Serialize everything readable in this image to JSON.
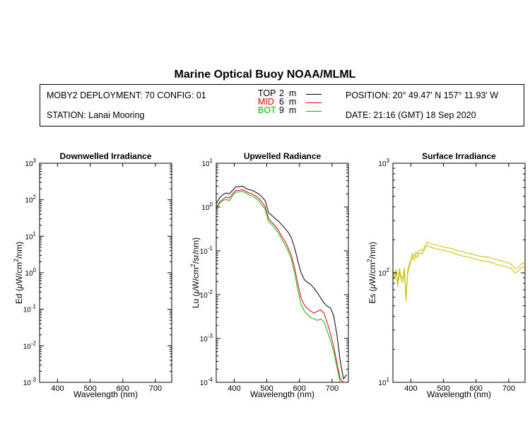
{
  "title": "Marine Optical Buoy NOAA/MLML",
  "info": {
    "deployment": "MOBY2 DEPLOYMENT: 70 CONFIG: 01",
    "station": "STATION: Lanai Mooring",
    "position": "POSITION: 20° 49.47' N   157° 11.93' W",
    "date": "DATE: 21:16 (GMT) 18 Sep 2020"
  },
  "legend": [
    {
      "name": "TOP",
      "depth": "2",
      "unit": "m",
      "color": "#000000"
    },
    {
      "name": "MID",
      "depth": "6",
      "unit": "m",
      "color": "#e00000"
    },
    {
      "name": "BOT",
      "depth": "9",
      "unit": "m",
      "color": "#00bb00"
    }
  ],
  "chart_data": [
    {
      "type": "line",
      "title": "Downwelled Irradiance",
      "xlabel": "Wavelength (nm)",
      "ylabel_prefix": "Ed  (",
      "ylabel_mu": "μ",
      "ylabel_mid": "W/cm",
      "ylabel_sup": "2",
      "ylabel_suffix": "/nm)",
      "xlim": [
        345,
        750
      ],
      "ylim": [
        0.001,
        1000
      ],
      "yscale": "log",
      "xticks": [
        400,
        500,
        600,
        700
      ],
      "yticks": [
        {
          "value": 0.001,
          "base": "10",
          "exp": "-3"
        },
        {
          "value": 0.01,
          "base": "10",
          "exp": "-2"
        },
        {
          "value": 0.1,
          "base": "10",
          "exp": "-1"
        },
        {
          "value": 1,
          "base": "10",
          "exp": "0"
        },
        {
          "value": 10,
          "base": "10",
          "exp": "1"
        },
        {
          "value": 100,
          "base": "10",
          "exp": "2"
        },
        {
          "value": 1000,
          "base": "10",
          "exp": "3"
        }
      ],
      "series": []
    },
    {
      "type": "line",
      "title": "Upwelled Radiance",
      "xlabel": "Wavelength (nm)",
      "ylabel_prefix": "Lu  (",
      "ylabel_mu": "μ",
      "ylabel_mid": "W/cm",
      "ylabel_sup": "2",
      "ylabel_suffix": "/sr/nm)",
      "xlim": [
        345,
        750
      ],
      "ylim": [
        0.0001,
        10
      ],
      "yscale": "log",
      "xticks": [
        400,
        500,
        600,
        700
      ],
      "yticks": [
        {
          "value": 0.0001,
          "base": "10",
          "exp": "-4"
        },
        {
          "value": 0.001,
          "base": "10",
          "exp": "-3"
        },
        {
          "value": 0.01,
          "base": "10",
          "exp": "-2"
        },
        {
          "value": 0.1,
          "base": "10",
          "exp": "-1"
        },
        {
          "value": 1,
          "base": "10",
          "exp": "0"
        },
        {
          "value": 10,
          "base": "10",
          "exp": "1"
        }
      ],
      "series": [
        {
          "color": "#000000",
          "x": [
            345,
            355,
            365,
            375,
            385,
            395,
            405,
            415,
            425,
            435,
            445,
            455,
            465,
            475,
            485,
            495,
            505,
            515,
            525,
            535,
            545,
            555,
            565,
            575,
            585,
            595,
            605,
            615,
            625,
            635,
            645,
            655,
            665,
            675,
            685,
            695,
            705,
            715,
            725,
            735,
            745
          ],
          "y": [
            1.2,
            1.6,
            1.9,
            2.1,
            2.0,
            2.4,
            2.9,
            2.9,
            3.0,
            2.7,
            2.5,
            2.4,
            2.2,
            2.0,
            1.7,
            1.4,
            0.75,
            0.65,
            0.55,
            0.48,
            0.4,
            0.33,
            0.27,
            0.2,
            0.12,
            0.06,
            0.032,
            0.022,
            0.019,
            0.017,
            0.014,
            0.011,
            0.0085,
            0.0065,
            0.0055,
            0.005,
            0.0033,
            0.0012,
            0.0003,
            0.00012,
            0.00015
          ]
        },
        {
          "color": "#e00000",
          "x": [
            345,
            355,
            365,
            375,
            385,
            395,
            405,
            415,
            425,
            435,
            445,
            455,
            465,
            475,
            485,
            495,
            505,
            515,
            525,
            535,
            545,
            555,
            565,
            575,
            585,
            595,
            605,
            615,
            625,
            635,
            645,
            655,
            665,
            675,
            685,
            695,
            705,
            715,
            725,
            735
          ],
          "y": [
            1.0,
            1.3,
            1.5,
            1.7,
            1.6,
            2.0,
            2.4,
            2.4,
            2.5,
            2.3,
            2.1,
            2.0,
            1.8,
            1.6,
            1.3,
            1.0,
            0.55,
            0.45,
            0.38,
            0.3,
            0.22,
            0.17,
            0.12,
            0.08,
            0.042,
            0.018,
            0.0085,
            0.0058,
            0.0048,
            0.0042,
            0.0038,
            0.0042,
            0.0045,
            0.0038,
            0.0023,
            0.0013,
            0.00065,
            0.00028,
            0.00012,
            0.0001
          ]
        },
        {
          "color": "#00bb00",
          "x": [
            345,
            355,
            365,
            375,
            385,
            395,
            405,
            415,
            425,
            435,
            445,
            455,
            465,
            475,
            485,
            495,
            505,
            515,
            525,
            535,
            545,
            555,
            565,
            575,
            585,
            595,
            605,
            615,
            625,
            635,
            645,
            655,
            665,
            675,
            685,
            695,
            705,
            715,
            725,
            735
          ],
          "y": [
            0.9,
            1.2,
            1.4,
            1.5,
            1.4,
            1.8,
            2.2,
            2.2,
            2.3,
            2.1,
            1.9,
            1.8,
            1.6,
            1.4,
            1.1,
            0.9,
            0.48,
            0.4,
            0.33,
            0.26,
            0.19,
            0.14,
            0.1,
            0.065,
            0.032,
            0.013,
            0.006,
            0.0042,
            0.0035,
            0.003,
            0.0028,
            0.0026,
            0.0028,
            0.0024,
            0.0015,
            0.0009,
            0.0005,
            0.00022,
            0.0001,
            0.0001
          ]
        }
      ]
    },
    {
      "type": "line",
      "title": "Surface Irradiance",
      "xlabel": "Wavelength (nm)",
      "ylabel_prefix": "Es  (",
      "ylabel_mu": "μ",
      "ylabel_mid": "W/cm",
      "ylabel_sup": "2",
      "ylabel_suffix": "/nm)",
      "xlim": [
        345,
        750
      ],
      "ylim": [
        10,
        1000
      ],
      "yscale": "log",
      "xticks": [
        400,
        500,
        600,
        700
      ],
      "yticks": [
        {
          "value": 10,
          "base": "10",
          "exp": "1"
        },
        {
          "value": 100,
          "base": "10",
          "exp": "2"
        },
        {
          "value": 1000,
          "base": "10",
          "exp": "3"
        }
      ],
      "series": [
        {
          "color": "#c8c000",
          "x": [
            345,
            350,
            355,
            360,
            365,
            370,
            375,
            380,
            385,
            390,
            395,
            400,
            405,
            410,
            415,
            420,
            425,
            430,
            435,
            440,
            445,
            450,
            460,
            470,
            480,
            490,
            500,
            510,
            520,
            530,
            540,
            550,
            560,
            570,
            580,
            590,
            600,
            610,
            620,
            630,
            640,
            650,
            660,
            670,
            680,
            690,
            700,
            710,
            720,
            730,
            740,
            750
          ],
          "y": [
            105,
            95,
            108,
            80,
            110,
            92,
            88,
            112,
            60,
            105,
            120,
            135,
            150,
            140,
            155,
            148,
            160,
            162,
            158,
            168,
            180,
            190,
            185,
            182,
            178,
            175,
            172,
            170,
            168,
            165,
            160,
            158,
            155,
            152,
            150,
            148,
            145,
            142,
            140,
            140,
            138,
            135,
            132,
            130,
            128,
            125,
            123,
            118,
            108,
            112,
            122,
            120
          ]
        },
        {
          "color": "#c8c000",
          "x": [
            345,
            350,
            355,
            360,
            365,
            370,
            375,
            380,
            385,
            390,
            395,
            400,
            405,
            410,
            415,
            420,
            425,
            430,
            435,
            440,
            445,
            450,
            460,
            470,
            480,
            490,
            500,
            510,
            520,
            530,
            540,
            550,
            560,
            570,
            580,
            590,
            600,
            610,
            620,
            630,
            640,
            650,
            660,
            670,
            680,
            690,
            700,
            710,
            720,
            730,
            740,
            750
          ],
          "y": [
            98,
            88,
            100,
            75,
            102,
            86,
            82,
            104,
            55,
            98,
            112,
            126,
            140,
            130,
            145,
            138,
            150,
            152,
            148,
            158,
            170,
            178,
            172,
            168,
            165,
            162,
            160,
            158,
            155,
            152,
            148,
            145,
            142,
            140,
            138,
            136,
            133,
            130,
            128,
            127,
            126,
            123,
            120,
            118,
            116,
            114,
            112,
            108,
            100,
            104,
            113,
            112
          ]
        }
      ]
    }
  ]
}
